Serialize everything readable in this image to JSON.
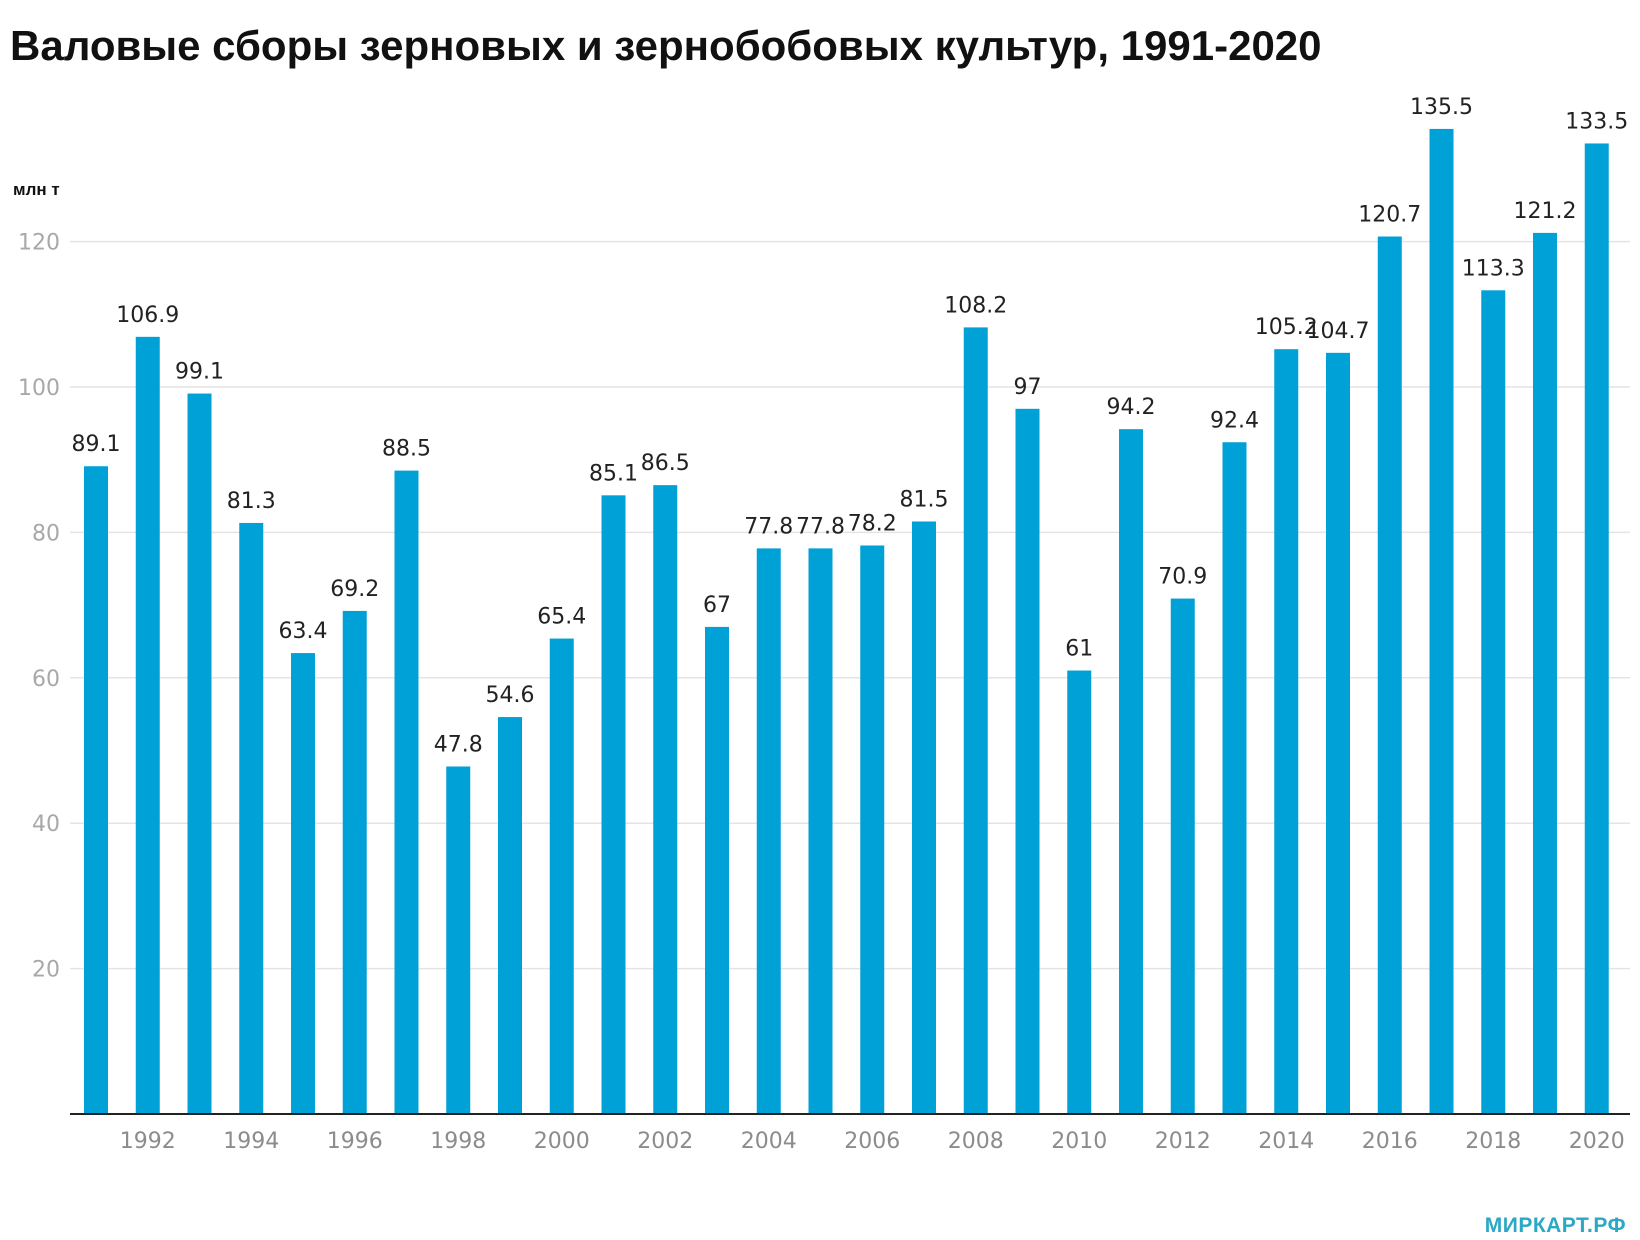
{
  "chart_data": {
    "type": "bar",
    "title": "Валовые сборы зерновых и зернобобовых культур, 1991-2020",
    "ylabel": "млн т",
    "xlabel": "",
    "categories": [
      "1991",
      "1992",
      "1993",
      "1994",
      "1995",
      "1996",
      "1997",
      "1998",
      "1999",
      "2000",
      "2001",
      "2002",
      "2003",
      "2004",
      "2005",
      "2006",
      "2007",
      "2008",
      "2009",
      "2010",
      "2011",
      "2012",
      "2013",
      "2014",
      "2015",
      "2016",
      "2017",
      "2018",
      "2019",
      "2020"
    ],
    "values": [
      89.1,
      106.9,
      99.1,
      81.3,
      63.4,
      69.2,
      88.5,
      47.8,
      54.6,
      65.4,
      85.1,
      86.5,
      67,
      77.8,
      77.8,
      78.2,
      81.5,
      108.2,
      97,
      61,
      94.2,
      70.9,
      92.4,
      105.2,
      104.7,
      120.7,
      135.5,
      113.3,
      121.2,
      133.5
    ],
    "value_labels": [
      "89.1",
      "106.9",
      "99.1",
      "81.3",
      "63.4",
      "69.2",
      "88.5",
      "47.8",
      "54.6",
      "65.4",
      "85.1",
      "86.5",
      "67",
      "77.8",
      "77.8",
      "78.2",
      "81.5",
      "108.2",
      "97",
      "61",
      "94.2",
      "70.9",
      "92.4",
      "105.2",
      "104.7",
      "120.7",
      "135.5",
      "113.3",
      "121.2",
      "133.5"
    ],
    "x_tick_labels": [
      "1992",
      "1994",
      "1996",
      "1998",
      "2000",
      "2002",
      "2004",
      "2006",
      "2008",
      "2010",
      "2012",
      "2014",
      "2016",
      "2018",
      "2020"
    ],
    "y_ticks": [
      20,
      40,
      60,
      80,
      100,
      120
    ],
    "ylim": [
      0,
      140
    ],
    "grid": true,
    "bar_color": "#00a1d6"
  },
  "branding": {
    "site": "МИРКАРТ.РФ"
  }
}
